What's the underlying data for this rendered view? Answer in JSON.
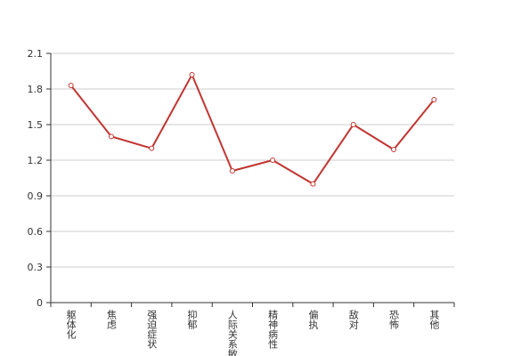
{
  "chart_data": {
    "type": "line",
    "categories": [
      "躯体化",
      "焦虑",
      "强迫症状",
      "抑郁",
      "人际关系敏感",
      "精神病性",
      "偏执",
      "敌对",
      "恐怖",
      "其他"
    ],
    "series": [
      {
        "color": "#c23531",
        "values": [
          1.83,
          1.4,
          1.3,
          1.92,
          1.11,
          1.2,
          1.0,
          1.5,
          1.29,
          1.71
        ]
      }
    ],
    "ylim": [
      0,
      2.1
    ],
    "yticks": [
      0,
      0.3,
      0.6,
      0.9,
      1.2,
      1.5,
      1.8,
      2.1
    ],
    "grid": true
  }
}
